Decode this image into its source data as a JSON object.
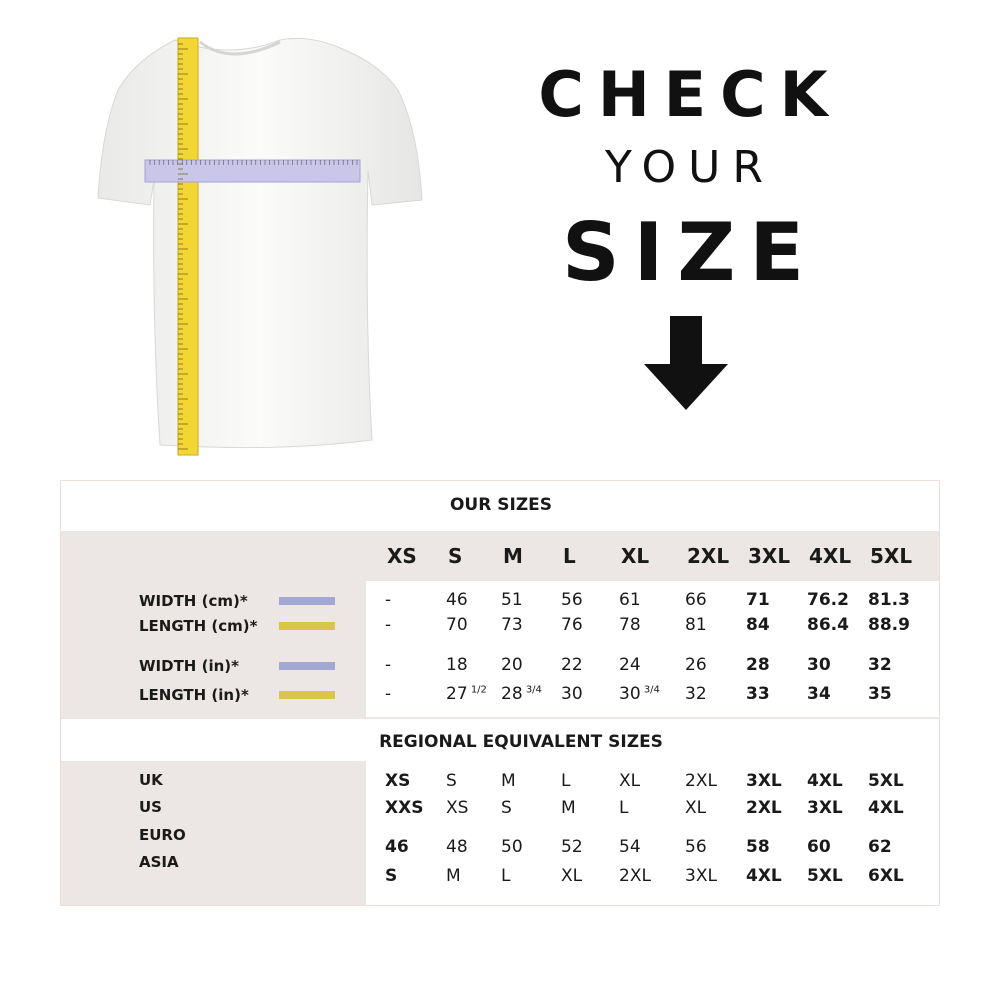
{
  "headline": {
    "line1": "CHECK",
    "line2": "YOUR",
    "line3": "SIZE"
  },
  "icons": {
    "arrow": "arrow-down-icon",
    "shirt": "tshirt-with-measuring-tapes"
  },
  "colors": {
    "width_swatch": "#a3a8d2",
    "length_swatch": "#d9c54a",
    "tape_yellow": "#f2d633",
    "tape_lavender": "#c9c6ea"
  },
  "our_sizes": {
    "title": "OUR SIZES",
    "sizes": [
      "XS",
      "S",
      "M",
      "L",
      "XL",
      "2XL",
      "3XL",
      "4XL",
      "5XL"
    ],
    "rows": [
      {
        "label": "WIDTH (cm)*",
        "swatch": "width",
        "values": [
          "-",
          "46",
          "51",
          "56",
          "61",
          "66",
          "71",
          "76.2",
          "81.3"
        ]
      },
      {
        "label": "LENGTH (cm)*",
        "swatch": "length",
        "values": [
          "-",
          "70",
          "73",
          "76",
          "78",
          "81",
          "84",
          "86.4",
          "88.9"
        ]
      },
      {
        "label": "WIDTH (in)*",
        "swatch": "width",
        "values": [
          "-",
          "18",
          "20",
          "22",
          "24",
          "26",
          "28",
          "30",
          "32"
        ]
      },
      {
        "label": "LENGTH (in)*",
        "swatch": "length",
        "values": [
          "-",
          "27",
          "28",
          "30",
          "30",
          "32",
          "33",
          "34",
          "35"
        ],
        "fractions": [
          "",
          "1/2",
          "3/4",
          "",
          "3/4",
          "",
          "",
          "",
          ""
        ]
      }
    ]
  },
  "regional": {
    "title": "REGIONAL EQUIVALENT SIZES",
    "labels": [
      "UK",
      "US",
      "EURO",
      "ASIA"
    ],
    "rows": [
      [
        "XS",
        "S",
        "M",
        "L",
        "XL",
        "2XL",
        "3XL",
        "4XL",
        "5XL"
      ],
      [
        "XXS",
        "XS",
        "S",
        "M",
        "L",
        "XL",
        "2XL",
        "3XL",
        "4XL"
      ],
      [
        "46",
        "48",
        "50",
        "52",
        "54",
        "56",
        "58",
        "60",
        "62"
      ],
      [
        "S",
        "M",
        "L",
        "XL",
        "2XL",
        "3XL",
        "4XL",
        "5XL",
        "6XL"
      ]
    ]
  }
}
